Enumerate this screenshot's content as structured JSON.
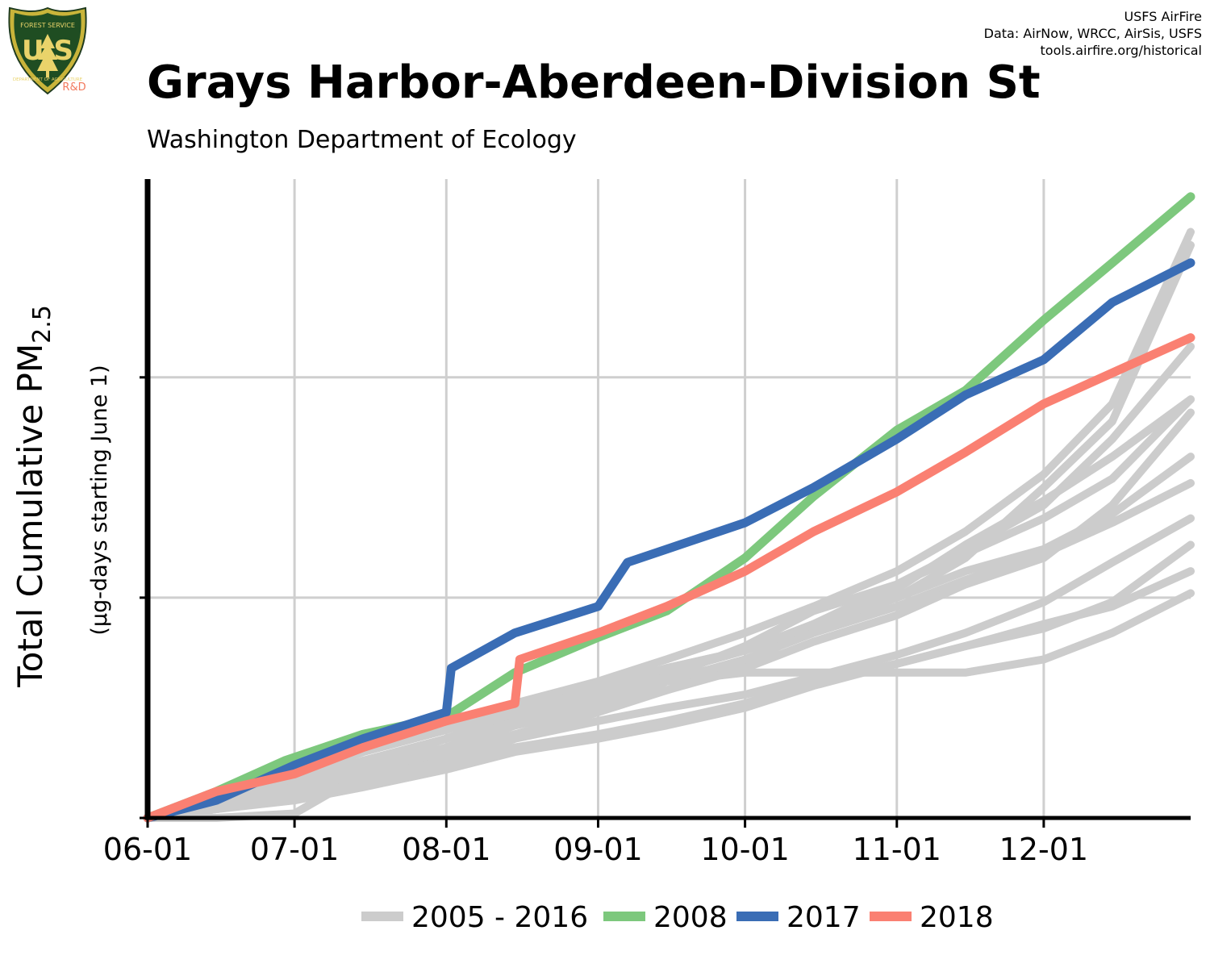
{
  "header": {
    "credit_lines": [
      "USFS AirFire",
      "Data: AirNow, WRCC, AirSis, USFS",
      "tools.airfire.org/historical"
    ],
    "logo": {
      "top_text": "FOREST SERVICE",
      "letters": "U S",
      "bottom_text": "DEPARTMENT OF AGRICULTURE",
      "badge": "R&D"
    }
  },
  "chart_data": {
    "type": "line",
    "title": "Grays Harbor-Aberdeen-Division St",
    "subtitle": "Washington Department of Ecology",
    "ylabel_main": "Total Cumulative PM",
    "ylabel_sub": "2.5",
    "ylabel_units": "(µg-days starting June 1)",
    "x_tick_labels": [
      "06-01",
      "07-01",
      "08-01",
      "09-01",
      "10-01",
      "11-01",
      "12-01"
    ],
    "x_tick_dates": [
      "06-01",
      "07-01",
      "08-01",
      "09-01",
      "10-01",
      "11-01",
      "12-01"
    ],
    "x_range": [
      "06-01",
      "12-31"
    ],
    "y_range": [
      0,
      1.45
    ],
    "y_gridlines": [
      0,
      0.5,
      1.0
    ],
    "grid": true,
    "legend_position": "bottom",
    "colors": {
      "history": "#cccccc",
      "2008": "#7dc87d",
      "2017": "#3a6db5",
      "2018": "#fa8072"
    },
    "legend": [
      {
        "label": "2005 - 2016",
        "color": "#cccccc"
      },
      {
        "label": "2008",
        "color": "#7dc87d"
      },
      {
        "label": "2017",
        "color": "#3a6db5"
      },
      {
        "label": "2018",
        "color": "#fa8072"
      }
    ],
    "history_series": [
      {
        "x": [
          "06-01",
          "06-15",
          "07-01",
          "07-15",
          "08-01",
          "08-15",
          "09-01",
          "09-15",
          "10-01",
          "10-15",
          "11-01",
          "11-15",
          "12-01",
          "12-15",
          "12-31"
        ],
        "y": [
          0,
          0.03,
          0.06,
          0.08,
          0.12,
          0.18,
          0.24,
          0.31,
          0.33,
          0.33,
          0.33,
          0.33,
          0.36,
          0.42,
          0.51
        ]
      },
      {
        "x": [
          "06-01",
          "06-15",
          "07-01",
          "07-15",
          "08-01",
          "08-15",
          "09-01",
          "09-15",
          "10-01",
          "10-15",
          "11-01",
          "11-15",
          "12-01",
          "12-15",
          "12-31"
        ],
        "y": [
          0,
          0.02,
          0.05,
          0.09,
          0.14,
          0.19,
          0.24,
          0.29,
          0.35,
          0.43,
          0.52,
          0.62,
          0.72,
          0.82,
          0.95
        ]
      },
      {
        "x": [
          "06-01",
          "06-15",
          "07-01",
          "07-15",
          "08-01",
          "08-15",
          "09-01",
          "09-15",
          "10-01",
          "10-15",
          "11-01",
          "11-15",
          "12-01",
          "12-15",
          "12-31"
        ],
        "y": [
          0,
          0.04,
          0.09,
          0.15,
          0.2,
          0.25,
          0.3,
          0.34,
          0.38,
          0.43,
          0.5,
          0.59,
          0.75,
          0.9,
          1.3
        ]
      },
      {
        "x": [
          "06-01",
          "06-15",
          "07-01",
          "07-15",
          "08-01",
          "08-15",
          "09-01",
          "09-15",
          "10-01",
          "10-15",
          "11-01",
          "11-15",
          "12-01",
          "12-15",
          "12-31"
        ],
        "y": [
          0,
          0.05,
          0.1,
          0.15,
          0.2,
          0.26,
          0.31,
          0.36,
          0.42,
          0.48,
          0.56,
          0.65,
          0.78,
          0.94,
          1.33
        ]
      },
      {
        "x": [
          "06-01",
          "06-15",
          "07-01",
          "07-15",
          "08-01",
          "08-15",
          "09-01",
          "09-15",
          "10-01",
          "10-15",
          "11-01",
          "11-15",
          "12-01",
          "12-15",
          "12-31"
        ],
        "y": [
          0,
          0.04,
          0.08,
          0.13,
          0.18,
          0.23,
          0.28,
          0.33,
          0.38,
          0.44,
          0.5,
          0.56,
          0.61,
          0.69,
          0.82
        ]
      },
      {
        "x": [
          "06-01",
          "06-15",
          "07-01",
          "07-15",
          "08-01",
          "08-15",
          "09-01",
          "09-15",
          "10-01",
          "10-15",
          "11-01",
          "11-15",
          "12-01",
          "12-15",
          "12-31"
        ],
        "y": [
          0,
          0.02,
          0.05,
          0.09,
          0.13,
          0.18,
          0.22,
          0.25,
          0.28,
          0.32,
          0.37,
          0.42,
          0.49,
          0.58,
          0.68
        ]
      },
      {
        "x": [
          "06-01",
          "06-15",
          "07-01",
          "07-15",
          "08-01",
          "08-15",
          "09-01",
          "09-15",
          "10-01",
          "10-15",
          "11-01",
          "11-15",
          "12-01",
          "12-15",
          "12-31"
        ],
        "y": [
          0,
          0.03,
          0.07,
          0.12,
          0.18,
          0.24,
          0.29,
          0.34,
          0.38,
          0.44,
          0.53,
          0.61,
          0.71,
          0.86,
          1.07
        ]
      },
      {
        "x": [
          "06-01",
          "06-15",
          "07-01",
          "07-15",
          "08-01",
          "08-15",
          "09-01",
          "09-15",
          "10-01",
          "10-15",
          "11-01",
          "11-15",
          "12-01",
          "12-15",
          "12-31"
        ],
        "y": [
          0,
          0.02,
          0.05,
          0.08,
          0.12,
          0.16,
          0.19,
          0.22,
          0.26,
          0.31,
          0.35,
          0.39,
          0.44,
          0.48,
          0.56
        ]
      },
      {
        "x": [
          "06-01",
          "06-15",
          "07-01",
          "07-15",
          "08-01",
          "08-15",
          "09-01",
          "09-15",
          "10-01",
          "10-15",
          "11-01",
          "11-15",
          "12-01",
          "12-15",
          "12-31"
        ],
        "y": [
          0,
          0.03,
          0.06,
          0.11,
          0.15,
          0.21,
          0.26,
          0.31,
          0.36,
          0.42,
          0.48,
          0.54,
          0.6,
          0.67,
          0.76
        ]
      },
      {
        "x": [
          "06-01",
          "06-15",
          "07-01",
          "07-15",
          "08-01",
          "08-15",
          "09-01",
          "09-15",
          "10-01",
          "10-15",
          "11-01",
          "11-15",
          "12-01",
          "12-15",
          "12-31"
        ],
        "y": [
          0,
          0,
          0.01,
          0.1,
          0.16,
          0.22,
          0.27,
          0.32,
          0.39,
          0.47,
          0.53,
          0.6,
          0.68,
          0.77,
          0.95
        ]
      },
      {
        "x": [
          "06-01",
          "06-15",
          "07-01",
          "07-15",
          "08-01",
          "08-15",
          "09-01",
          "09-15",
          "10-01",
          "10-15",
          "11-01",
          "11-15",
          "12-01",
          "12-15",
          "12-31"
        ],
        "y": [
          0,
          0.02,
          0.04,
          0.07,
          0.11,
          0.15,
          0.18,
          0.21,
          0.25,
          0.3,
          0.35,
          0.39,
          0.43,
          0.49,
          0.62
        ]
      },
      {
        "x": [
          "06-01",
          "06-15",
          "07-01",
          "07-15",
          "08-01",
          "08-15",
          "09-01",
          "09-15",
          "10-01",
          "10-15",
          "11-01",
          "11-15",
          "12-01",
          "12-15",
          "12-31"
        ],
        "y": [
          0,
          0.03,
          0.07,
          0.11,
          0.16,
          0.21,
          0.25,
          0.29,
          0.34,
          0.4,
          0.46,
          0.53,
          0.59,
          0.71,
          0.92
        ]
      }
    ],
    "series": [
      {
        "name": "2008",
        "color": "#7dc87d",
        "x": [
          "06-01",
          "06-15",
          "06-29",
          "07-15",
          "08-01",
          "08-15",
          "09-01",
          "09-15",
          "10-01",
          "10-15",
          "11-01",
          "11-15",
          "12-01",
          "12-15",
          "12-31"
        ],
        "y": [
          0,
          0.06,
          0.13,
          0.19,
          0.23,
          0.33,
          0.41,
          0.47,
          0.59,
          0.73,
          0.88,
          0.97,
          1.13,
          1.26,
          1.41
        ]
      },
      {
        "name": "2017",
        "color": "#3a6db5",
        "x": [
          "06-01",
          "06-15",
          "07-01",
          "07-15",
          "08-01",
          "08-02",
          "08-15",
          "09-01",
          "09-07",
          "09-15",
          "10-01",
          "10-15",
          "11-01",
          "11-15",
          "12-01",
          "12-15",
          "12-31"
        ],
        "y": [
          0,
          0.04,
          0.12,
          0.18,
          0.24,
          0.34,
          0.42,
          0.48,
          0.58,
          0.61,
          0.67,
          0.75,
          0.86,
          0.96,
          1.04,
          1.17,
          1.26
        ]
      },
      {
        "name": "2018",
        "color": "#fa8072",
        "x": [
          "06-01",
          "06-15",
          "07-01",
          "07-15",
          "08-01",
          "08-15",
          "08-16",
          "09-01",
          "09-15",
          "10-01",
          "10-15",
          "11-01",
          "11-15",
          "12-01",
          "12-15",
          "12-31"
        ],
        "y": [
          0,
          0.06,
          0.1,
          0.16,
          0.22,
          0.26,
          0.36,
          0.42,
          0.48,
          0.56,
          0.65,
          0.74,
          0.83,
          0.94,
          1.01,
          1.09
        ]
      }
    ]
  }
}
